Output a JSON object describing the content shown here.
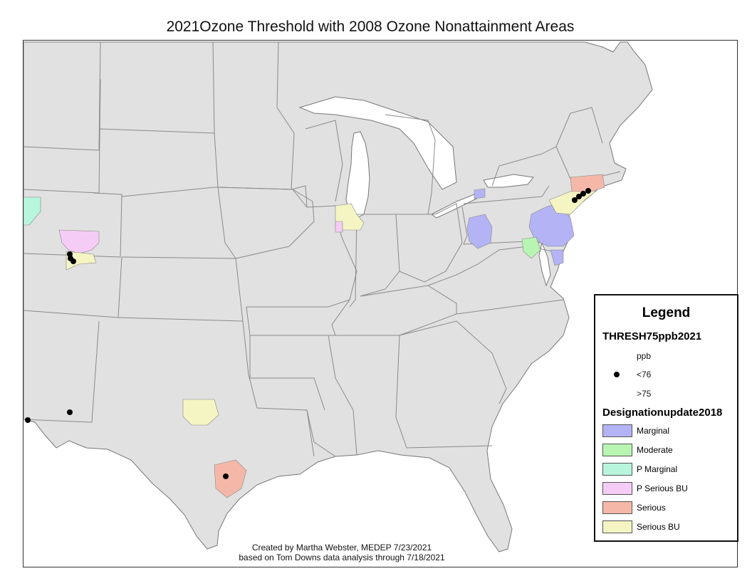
{
  "title": "2021Ozone Threshold with 2008 Ozone Nonattainment Areas",
  "credit": {
    "line1": "Created by Martha Webster, MEDEP 7/23/2021",
    "line2": "based on Tom Downs data analysis through 7/18/2021"
  },
  "legend": {
    "title": "Legend",
    "threshold_layer": "THRESH75ppb2021",
    "threshold_unit": "ppb",
    "threshold_items": [
      {
        "label": "<76",
        "symbol": "black-dot"
      },
      {
        "label": ">75",
        "symbol": "none"
      }
    ],
    "designation_layer": "Designationupdate2018",
    "designation_items": [
      {
        "label": "Marginal",
        "color": "#b3b3f5"
      },
      {
        "label": "Moderate",
        "color": "#b8f5b3"
      },
      {
        "label": "P Marginal",
        "color": "#b8f5dd"
      },
      {
        "label": "P Serious BU",
        "color": "#f5ccf5"
      },
      {
        "label": "Serious",
        "color": "#f5b8a8"
      },
      {
        "label": "Serious BU",
        "color": "#f5f5c4"
      }
    ]
  },
  "colors": {
    "land": "#e1e1e1",
    "state_border": "#8a8a8a",
    "marker": "#000000"
  }
}
